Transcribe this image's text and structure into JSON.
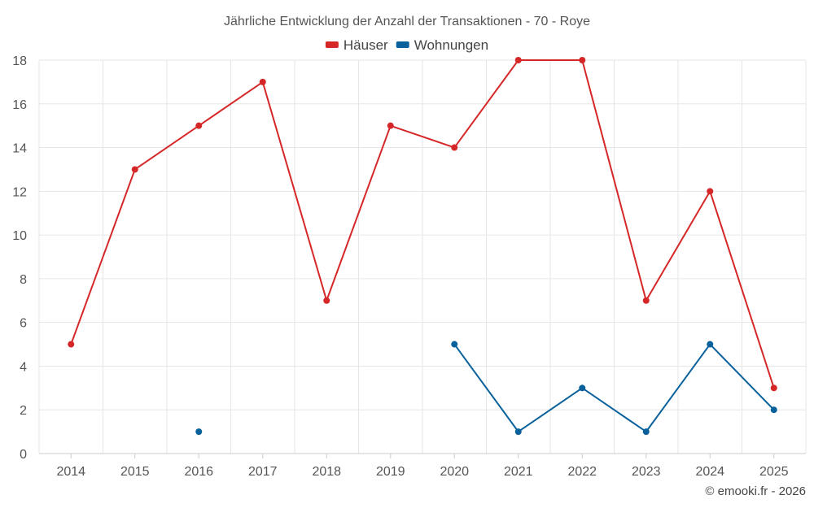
{
  "chart_data": {
    "type": "line",
    "title": "Jährliche Entwicklung der Anzahl der Transaktionen - 70 - Roye",
    "categories": [
      "2014",
      "2015",
      "2016",
      "2017",
      "2018",
      "2019",
      "2020",
      "2021",
      "2022",
      "2023",
      "2024",
      "2025"
    ],
    "series": [
      {
        "name": "Häuser",
        "color": "#d62728",
        "values": [
          5,
          13,
          15,
          17,
          7,
          15,
          14,
          18,
          18,
          7,
          12,
          3
        ]
      },
      {
        "name": "Wohnungen",
        "color": "#08619b",
        "values": [
          null,
          null,
          1,
          null,
          null,
          null,
          5,
          1,
          3,
          1,
          5,
          2
        ]
      }
    ],
    "ylim": [
      0,
      18
    ],
    "yticks": [
      0,
      2,
      4,
      6,
      8,
      10,
      12,
      14,
      16,
      18
    ],
    "xlabel": "",
    "ylabel": "",
    "grid": true,
    "legend": "top-center"
  },
  "credit": "© emooki.fr - 2026"
}
